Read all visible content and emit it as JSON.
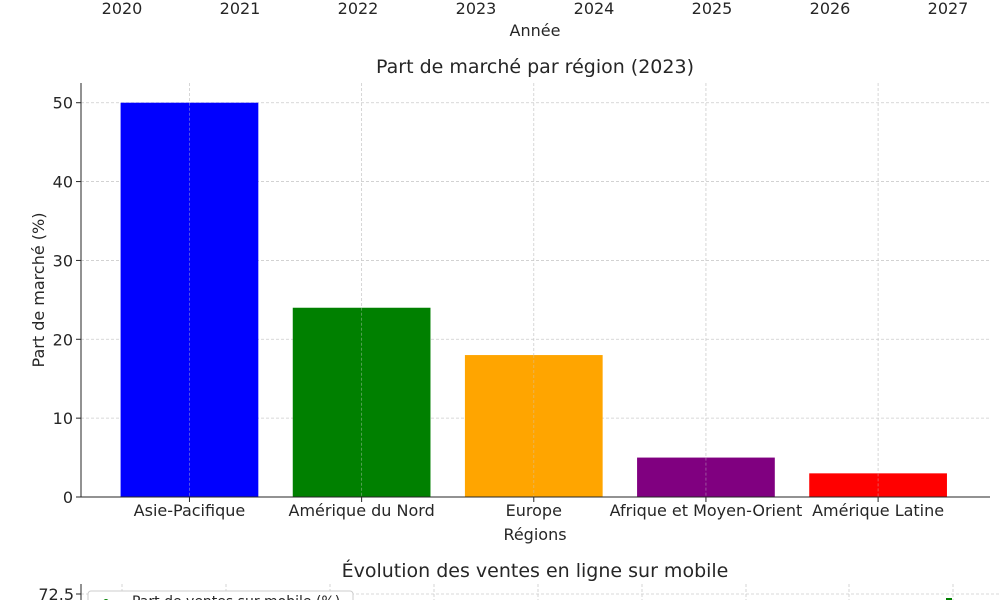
{
  "chart_data": [
    {
      "type": "line",
      "partial": "bottom-edge-only",
      "xlabel": "Année",
      "x_ticks": [
        "2020",
        "2021",
        "2022",
        "2023",
        "2024",
        "2025",
        "2026",
        "2027"
      ]
    },
    {
      "type": "bar",
      "title": "Part de marché par région (2023)",
      "xlabel": "Régions",
      "ylabel": "Part de marché (%)",
      "categories": [
        "Asie-Pacifique",
        "Amérique du Nord",
        "Europe",
        "Afrique et Moyen-Orient",
        "Amérique Latine"
      ],
      "values": [
        50,
        24,
        18,
        5,
        3
      ],
      "colors": [
        "#0000ff",
        "#008000",
        "#ffa500",
        "#800080",
        "#ff0000"
      ],
      "ylim": [
        0,
        52.5
      ],
      "y_ticks": [
        0,
        10,
        20,
        30,
        40,
        50
      ],
      "grid": true
    },
    {
      "type": "line",
      "partial": "top-edge-only",
      "title": "Évolution des ventes en ligne sur mobile",
      "y_ticks_visible": [
        "72.5"
      ],
      "legend": {
        "placement": "top-left",
        "entries": [
          "Part de ventes sur mobile (%)"
        ]
      },
      "series_color": "#008000",
      "grid": true
    }
  ]
}
